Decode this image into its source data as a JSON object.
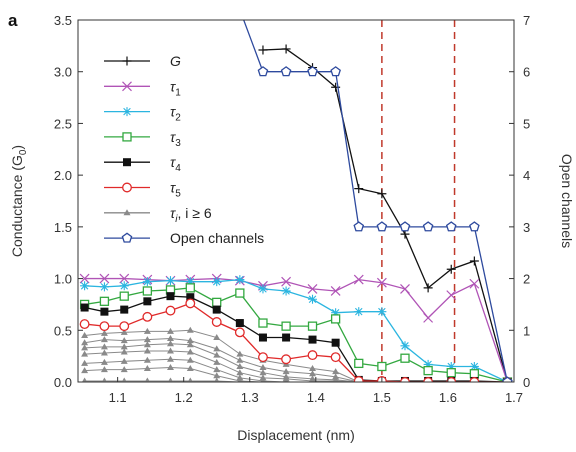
{
  "chart_data": {
    "type": "line",
    "panel_label": "a",
    "xlabel": "Displacement (nm)",
    "ylabel_left": "Conductance (G",
    "ylabel_left_sub": "0",
    "ylabel_left_end": ")",
    "ylabel_right": "Open channels",
    "xlim": [
      1.04,
      1.7
    ],
    "ylim_left": [
      0,
      3.5
    ],
    "ylim_right": [
      0,
      7
    ],
    "x_ticks": [
      1.1,
      1.2,
      1.3,
      1.4,
      1.5,
      1.6,
      1.7
    ],
    "x_tick_labels": [
      "1.1",
      "1.2",
      "1.3",
      "1.4",
      "1.5",
      "1.6",
      "1.7"
    ],
    "y_left_ticks": [
      0,
      0.5,
      1.0,
      1.5,
      2.0,
      2.5,
      3.0,
      3.5
    ],
    "y_left_tick_labels": [
      "0.0",
      "0.5",
      "1.0",
      "1.5",
      "2.0",
      "2.5",
      "3.0",
      "3.5"
    ],
    "y_right_ticks": [
      0,
      1,
      2,
      3,
      4,
      5,
      6,
      7
    ],
    "y_right_tick_labels": [
      "0",
      "1",
      "2",
      "3",
      "4",
      "5",
      "6",
      "7"
    ],
    "vlines": [
      1.5,
      1.61
    ],
    "vline_color": "#c0392b",
    "grid": false,
    "legend_position": "top-left",
    "x": [
      1.05,
      1.08,
      1.11,
      1.145,
      1.18,
      1.21,
      1.25,
      1.285,
      1.32,
      1.355,
      1.395,
      1.43,
      1.465,
      1.5,
      1.535,
      1.57,
      1.605,
      1.64,
      1.69
    ],
    "series": [
      {
        "name": "G",
        "name_sub": "",
        "axis": "left",
        "color": "#111111",
        "marker": "plus",
        "values": [
          null,
          null,
          null,
          null,
          null,
          null,
          null,
          null,
          3.21,
          3.22,
          3.04,
          2.85,
          1.87,
          1.82,
          1.43,
          0.91,
          1.09,
          1.17,
          0.0
        ]
      },
      {
        "name": "τ",
        "name_sub": "1",
        "axis": "left",
        "color": "#b054b6",
        "marker": "x",
        "values": [
          1.0,
          1.0,
          1.0,
          0.99,
          0.98,
          0.99,
          1.0,
          0.98,
          0.93,
          0.97,
          0.9,
          0.88,
          0.99,
          0.96,
          0.9,
          0.62,
          0.84,
          0.95,
          0.0
        ]
      },
      {
        "name": "τ",
        "name_sub": "2",
        "axis": "left",
        "color": "#2bb5e0",
        "marker": "star",
        "values": [
          0.93,
          0.92,
          0.93,
          0.97,
          0.98,
          0.97,
          0.97,
          0.99,
          0.9,
          0.88,
          0.8,
          0.67,
          0.68,
          0.68,
          0.35,
          0.17,
          0.15,
          0.15,
          0.0
        ]
      },
      {
        "name": "τ",
        "name_sub": "3",
        "axis": "left",
        "color": "#33a840",
        "marker": "square-open",
        "values": [
          0.75,
          0.78,
          0.83,
          0.88,
          0.89,
          0.91,
          0.77,
          0.86,
          0.57,
          0.54,
          0.54,
          0.61,
          0.18,
          0.15,
          0.23,
          0.11,
          0.09,
          0.08,
          0.0
        ]
      },
      {
        "name": "τ",
        "name_sub": "4",
        "axis": "left",
        "color": "#111111",
        "marker": "square",
        "values": [
          0.72,
          0.68,
          0.7,
          0.78,
          0.83,
          0.82,
          0.7,
          0.57,
          0.43,
          0.43,
          0.41,
          0.38,
          0.02,
          0.01,
          0.01,
          0.01,
          0.01,
          0.01,
          0.0
        ]
      },
      {
        "name": "τ",
        "name_sub": "5",
        "axis": "left",
        "color": "#e02a2a",
        "marker": "circle-open",
        "values": [
          0.56,
          0.54,
          0.54,
          0.63,
          0.69,
          0.76,
          0.58,
          0.48,
          0.24,
          0.22,
          0.26,
          0.24,
          0.01,
          0.01,
          0.0,
          0.0,
          0.0,
          0.0,
          0.0
        ]
      },
      {
        "name": "τ",
        "name_sub": "i",
        "name_extra": ", i ≥ 6",
        "axis": "left",
        "color": "#8a8a8a",
        "marker": "triangle",
        "values": [
          0.45,
          0.47,
          0.48,
          0.49,
          0.49,
          0.5,
          0.43,
          0.27,
          0.21,
          0.17,
          0.13,
          0.1,
          0.0,
          0.0,
          0.0,
          0.0,
          0.0,
          0.0,
          0.0
        ]
      },
      {
        "name": "",
        "axis": "left",
        "color": "#8a8a8a",
        "marker": "triangle",
        "unlabeled": true,
        "values": [
          0.38,
          0.41,
          0.4,
          0.41,
          0.42,
          0.4,
          0.32,
          0.21,
          0.14,
          0.1,
          0.08,
          0.05,
          0.0,
          0.0,
          0.0,
          0.0,
          0.0,
          0.0,
          0.0
        ]
      },
      {
        "name": "",
        "axis": "left",
        "color": "#8a8a8a",
        "marker": "triangle",
        "unlabeled": true,
        "values": [
          0.33,
          0.34,
          0.34,
          0.36,
          0.37,
          0.36,
          0.26,
          0.15,
          0.09,
          0.05,
          0.03,
          0.02,
          0.0,
          0.0,
          0.0,
          0.0,
          0.0,
          0.0,
          0.0
        ]
      },
      {
        "name": "",
        "axis": "left",
        "color": "#8a8a8a",
        "marker": "triangle",
        "unlabeled": true,
        "values": [
          0.27,
          0.28,
          0.29,
          0.3,
          0.3,
          0.29,
          0.19,
          0.09,
          0.04,
          0.03,
          0.01,
          0.01,
          0.0,
          0.0,
          0.0,
          0.0,
          0.0,
          0.0,
          0.0
        ]
      },
      {
        "name": "",
        "axis": "left",
        "color": "#8a8a8a",
        "marker": "triangle",
        "unlabeled": true,
        "values": [
          0.18,
          0.19,
          0.2,
          0.21,
          0.22,
          0.21,
          0.12,
          0.04,
          0.01,
          0.0,
          0.0,
          0.0,
          0.0,
          0.0,
          0.0,
          0.0,
          0.0,
          0.0,
          0.0
        ]
      },
      {
        "name": "",
        "axis": "left",
        "color": "#8a8a8a",
        "marker": "triangle",
        "unlabeled": true,
        "values": [
          0.11,
          0.12,
          0.12,
          0.13,
          0.14,
          0.13,
          0.06,
          0.01,
          0.0,
          0.0,
          0.0,
          0.0,
          0.0,
          0.0,
          0.0,
          0.0,
          0.0,
          0.0,
          0.0
        ]
      },
      {
        "name": "",
        "axis": "left",
        "color": "#8a8a8a",
        "marker": "triangle",
        "unlabeled": true,
        "values": [
          0.01,
          0.01,
          0.01,
          0.01,
          0.01,
          0.01,
          0.01,
          0.0,
          0.0,
          0.0,
          0.0,
          0.0,
          0.0,
          0.0,
          0.0,
          0.0,
          0.0,
          0.0,
          0.0
        ]
      },
      {
        "name": "Open channels",
        "name_sub": "",
        "axis": "right",
        "color": "#2e4a9e",
        "marker": "pentagon",
        "values": [
          null,
          null,
          null,
          null,
          null,
          null,
          null,
          7.2,
          6,
          6,
          6,
          6,
          3,
          3,
          3,
          3,
          3,
          3,
          0
        ]
      }
    ]
  }
}
